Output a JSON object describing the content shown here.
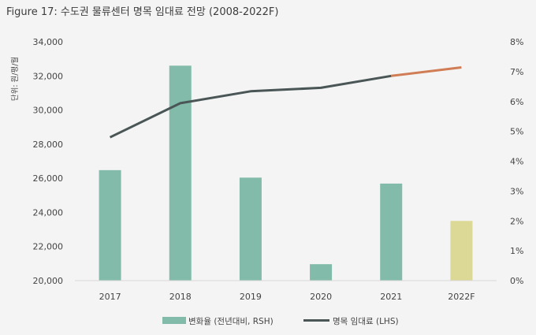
{
  "title": "Figure 17: 수도권 물류센터 명목 임대료 전망 (2008-2022F)",
  "chart_data": {
    "type": "bar+line",
    "title": "Figure 17: 수도권 물류센터 명목 임대료 전망 (2008-2022F)",
    "categories": [
      "2017",
      "2018",
      "2019",
      "2020",
      "2021",
      "2022F"
    ],
    "left_axis": {
      "label": "단위: 원/평/월",
      "range": [
        20000,
        34000
      ],
      "ticks": [
        "20,000",
        "22,000",
        "24,000",
        "26,000",
        "28,000",
        "30,000",
        "32,000",
        "34,000"
      ]
    },
    "right_axis": {
      "range": [
        0,
        8
      ],
      "ticks": [
        "0%",
        "1%",
        "2%",
        "3%",
        "4%",
        "5%",
        "6%",
        "7%",
        "8%"
      ]
    },
    "series": [
      {
        "name": "변화율 (전년대비, RSH)",
        "kind": "bar",
        "axis": "right",
        "values": [
          3.7,
          7.2,
          3.45,
          0.55,
          3.25,
          2.0
        ],
        "colors": [
          "#82bba9",
          "#82bba9",
          "#82bba9",
          "#82bba9",
          "#82bba9",
          "#dcd996"
        ]
      },
      {
        "name": "명목 임대료 (LHS)",
        "kind": "line",
        "axis": "left",
        "values": [
          28400,
          30400,
          31100,
          31300,
          32000,
          32500
        ],
        "color": "#4a5656",
        "forecast_color": "#d07d55",
        "forecast_from_index": 4
      }
    ],
    "legend_position": "bottom-center",
    "grid": false
  }
}
